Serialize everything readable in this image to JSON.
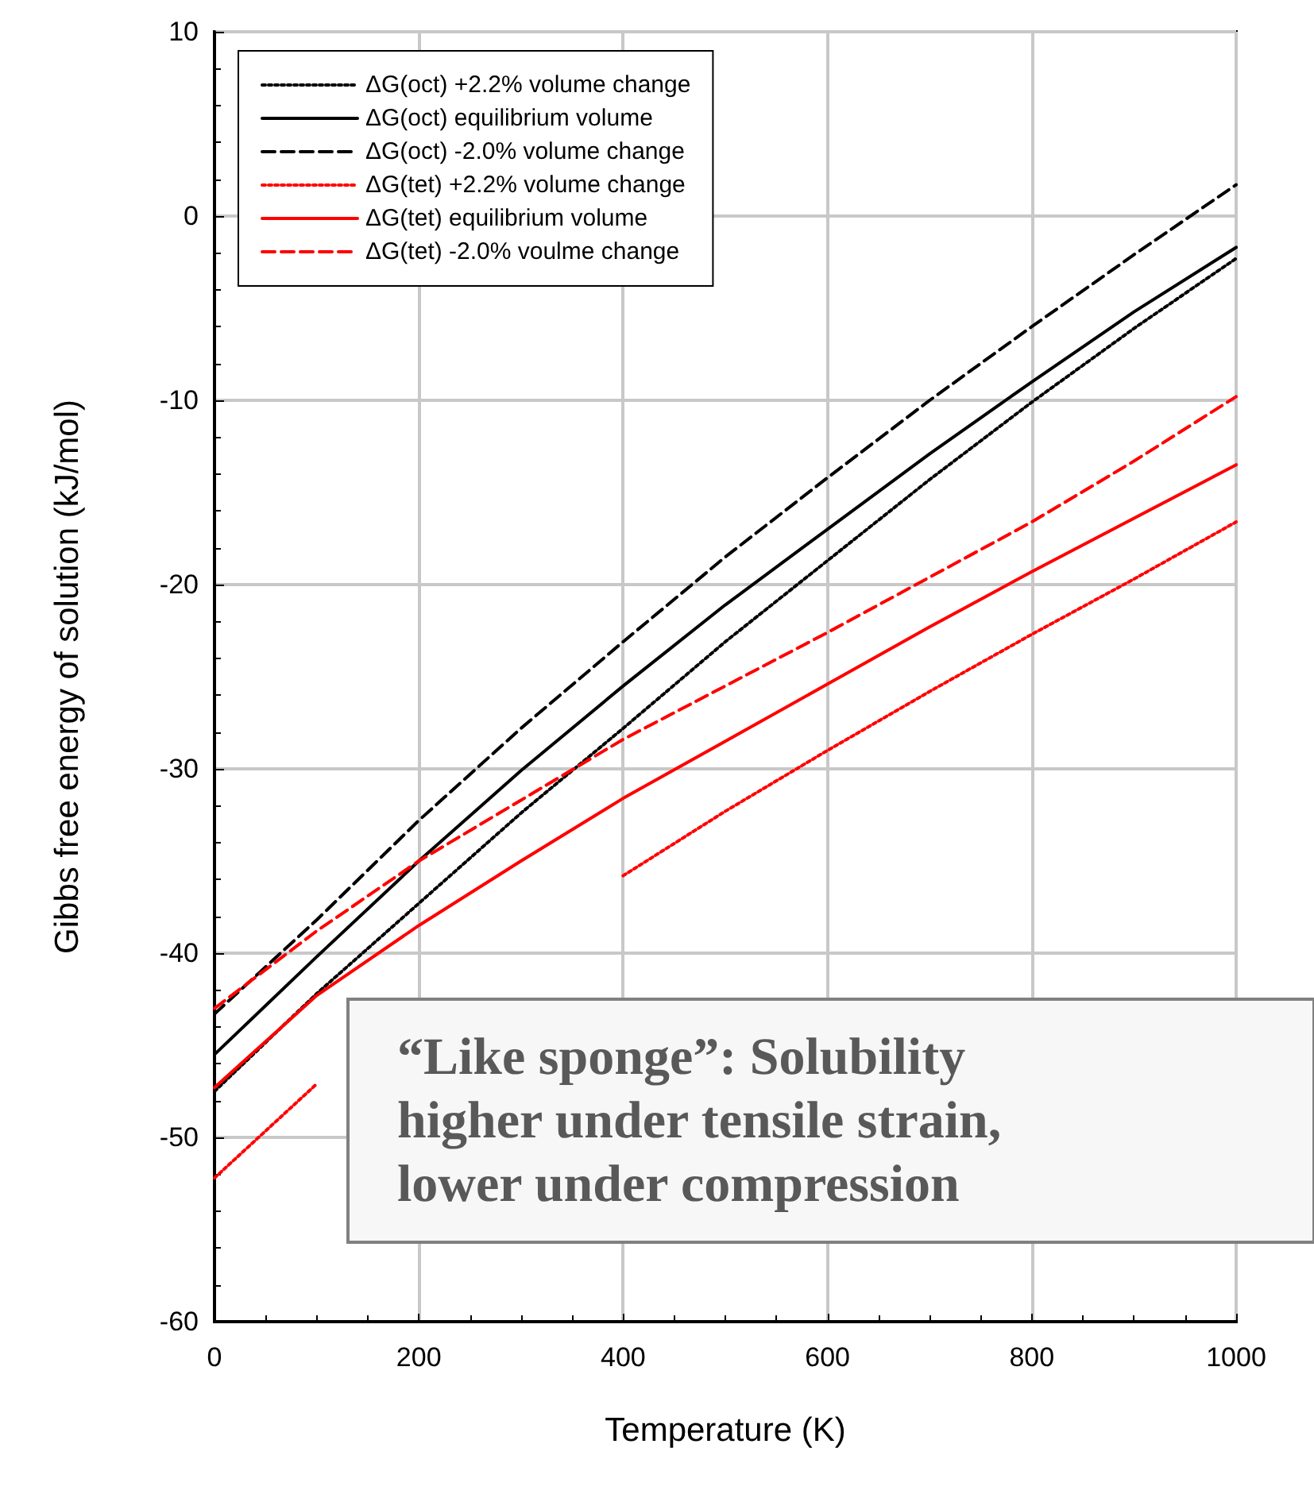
{
  "chart_data": {
    "type": "line",
    "xlabel": "Temperature (K)",
    "ylabel": "Gibbs free energy of solution (kJ/mol)",
    "x": [
      0,
      100,
      200,
      300,
      400,
      500,
      600,
      700,
      800,
      900,
      1000
    ],
    "series": [
      {
        "name": "ΔG(oct) +2.2% volume change",
        "color": "#000000",
        "line_style": "dotted",
        "values": [
          -47.5,
          -42.2,
          -37.3,
          -32.4,
          -27.8,
          -23.1,
          -18.7,
          -14.3,
          -10.1,
          -6.1,
          -2.3
        ]
      },
      {
        "name": "ΔG(oct) equilibrium volume",
        "color": "#000000",
        "line_style": "solid",
        "values": [
          -45.5,
          -40.2,
          -35,
          -30.1,
          -25.5,
          -21.1,
          -17,
          -12.9,
          -9,
          -5.2,
          -1.7
        ]
      },
      {
        "name": "ΔG(oct) -2.0% volume change",
        "color": "#000000",
        "line_style": "dashed",
        "values": [
          -43.3,
          -38.2,
          -32.8,
          -27.8,
          -23.1,
          -18.5,
          -14.2,
          -10,
          -6,
          -2.1,
          1.7
        ]
      },
      {
        "name": "ΔG(tet) +2.2% volume change",
        "color": "#ff0000",
        "line_style": "dotted",
        "values": [
          -52.2,
          -47.1,
          null,
          null,
          -35.8,
          -32.3,
          -29,
          -25.8,
          -22.7,
          -19.7,
          -16.6
        ]
      },
      {
        "name": "ΔG(tet) equilibrium volume",
        "color": "#ff0000",
        "line_style": "solid",
        "values": [
          -47.3,
          -42.3,
          -38.5,
          -35,
          -31.6,
          -28.5,
          -25.4,
          -22.3,
          -19.3,
          -16.4,
          -13.5
        ]
      },
      {
        "name": "ΔG(tet) -2.0% voulme change",
        "color": "#ff0000",
        "line_style": "dashed",
        "values": [
          -43,
          -38.8,
          -35,
          -31.7,
          -28.4,
          -25.5,
          -22.6,
          -19.6,
          -16.6,
          -13.3,
          -9.8
        ]
      }
    ],
    "xlim": [
      0,
      1000
    ],
    "xticks": [
      0,
      200,
      400,
      600,
      800,
      {
        "value": 1000,
        "label": "1000"
      }
    ],
    "ylim": [
      -60,
      10
    ],
    "yticks": [
      -60,
      -50,
      -40,
      -30,
      -20,
      -10,
      0,
      10
    ],
    "grid": true,
    "legend": "top left",
    "marker": "none",
    "annotations": [
      "“Like sponge”: Solubility\nhigher under tensile strain,\nlower under compression"
    ]
  }
}
